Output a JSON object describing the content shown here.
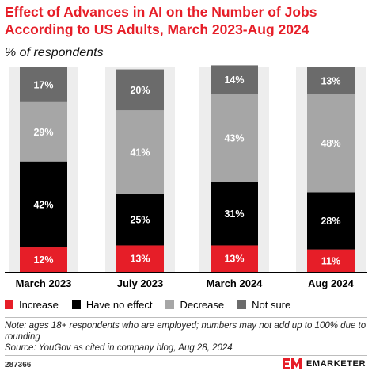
{
  "header": {
    "title": "Effect of Advances in AI on the Number of Jobs According to US Adults, March 2023-Aug 2024",
    "subtitle": "% of respondents"
  },
  "colors": {
    "increase": "#e61e28",
    "no_effect": "#000000",
    "decrease": "#a6a6a6",
    "not_sure": "#6b6b6b",
    "background_column": "#ededed",
    "label_on_dark": "#ffffff"
  },
  "chart_data": {
    "type": "bar",
    "stacked": true,
    "orientation": "vertical",
    "categories": [
      "March 2023",
      "July 2023",
      "March 2024",
      "Aug 2024"
    ],
    "series": [
      {
        "name": "Increase",
        "values": [
          12,
          13,
          13,
          11
        ],
        "labels": [
          "12%",
          "13%",
          "13%",
          "11%"
        ]
      },
      {
        "name": "Have no effect",
        "values": [
          42,
          25,
          31,
          28
        ],
        "labels": [
          "42%",
          "25%",
          "31%",
          "28%"
        ]
      },
      {
        "name": "Decrease",
        "values": [
          29,
          41,
          43,
          48
        ],
        "labels": [
          "29%",
          "41%",
          "43%",
          "48%"
        ]
      },
      {
        "name": "Not sure",
        "values": [
          17,
          20,
          14,
          13
        ],
        "labels": [
          "17%",
          "20%",
          "14%",
          "13%"
        ]
      }
    ],
    "ylim": [
      0,
      100
    ],
    "grid": false,
    "legend_position": "bottom"
  },
  "legend": {
    "items": [
      "Increase",
      "Have no effect",
      "Decrease",
      "Not sure"
    ]
  },
  "notes": {
    "note": "Note: ages 18+ respondents who are employed; numbers may not add up to 100% due to rounding",
    "source": "Source: YouGov as cited in company blog, Aug 28, 2024"
  },
  "footer": {
    "chart_id": "287366",
    "brand": "EMARKETER"
  }
}
